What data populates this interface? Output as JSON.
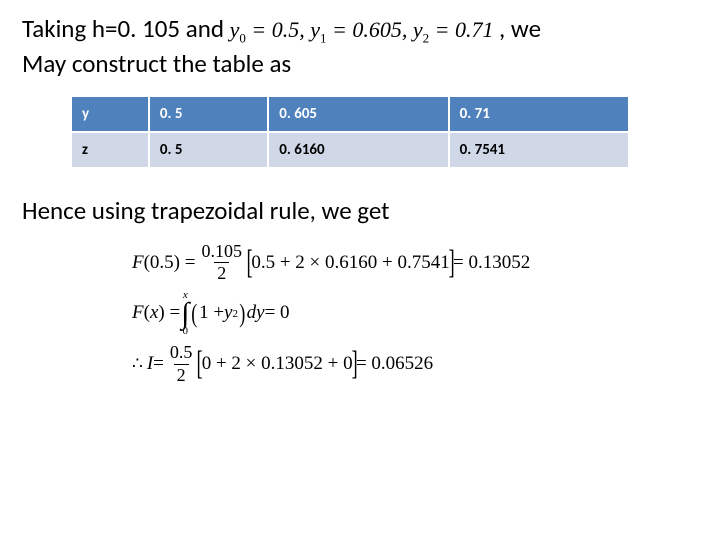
{
  "intro": {
    "prefix": "Taking h=0. 105 and ",
    "math_y0": "y",
    "math_y0_sub": "0",
    "math_y0_val": " = 0.5, ",
    "math_y1": "y",
    "math_y1_sub": "1",
    "math_y1_val": " = 0.605, ",
    "math_y2": "y",
    "math_y2_sub": "2",
    "math_y2_val": " = 0.71",
    "suffix": " , we",
    "line2": "May construct the table as"
  },
  "table": {
    "header_bg": "#4f81bd",
    "header_fg": "#ffffff",
    "body_bg": "#d0d8e8",
    "body_fg": "#000000",
    "columns": [
      "y",
      "0. 5",
      "0. 605",
      "0. 71"
    ],
    "rows": [
      [
        "z",
        "0. 5",
        "0. 6160",
        "0. 7541"
      ]
    ]
  },
  "hence": "Hence using trapezoidal rule, we get",
  "eq1": {
    "F": "F",
    "arg": "(0.5) = ",
    "frac_num": "0.105",
    "frac_den": "2",
    "inside": "0.5 + 2 × 0.6160 + 0.7541",
    "result": " = 0.13052"
  },
  "eq2": {
    "F": "F",
    "arg_open": "(",
    "x": "x",
    "arg_close": ") = ",
    "int_upper": "x",
    "int_lower": "0",
    "one": "1 + ",
    "y": "y",
    "sq": "2",
    "dy": "dy",
    "eq0": " = 0"
  },
  "eq3": {
    "I": "I",
    "eq": " = ",
    "frac_num": "0.5",
    "frac_den": "2",
    "inside": "0 + 2 × 0.13052 + 0",
    "result": " = 0.06526"
  }
}
